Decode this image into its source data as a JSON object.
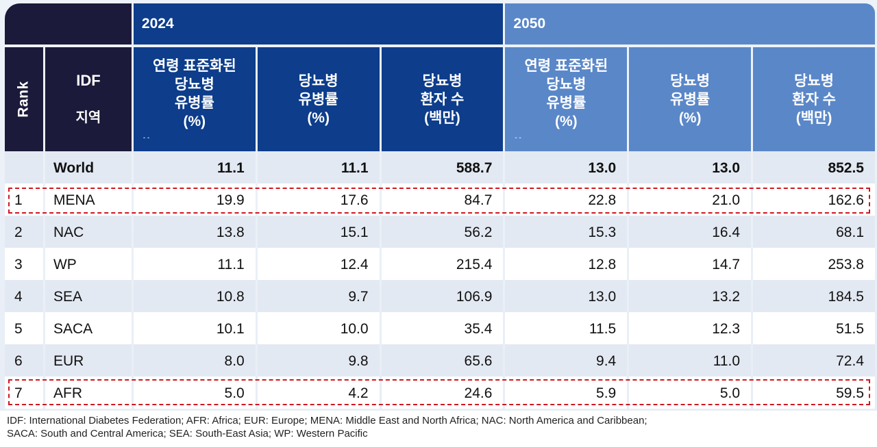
{
  "table": {
    "header": {
      "corner": "",
      "year_2024": "2024",
      "year_2050": "2050",
      "rank": "Rank",
      "region_line1": "IDF",
      "region_line2": "지역",
      "col_age_std": [
        "연령  표준화된",
        "당뇨병",
        "유병률",
        "(%)"
      ],
      "col_prev": [
        "당뇨병",
        "유병률",
        "(%)"
      ],
      "col_cases": [
        "당뇨병",
        "환자  수",
        "(백만)"
      ],
      "dots": "-   -"
    },
    "rows": [
      {
        "rank": "",
        "region": "World",
        "v2024": [
          "11.1",
          "11.1",
          "588.7"
        ],
        "v2050": [
          "13.0",
          "13.0",
          "852.5"
        ],
        "bold": true,
        "shade": true,
        "highlight": false
      },
      {
        "rank": "1",
        "region": "MENA",
        "v2024": [
          "19.9",
          "17.6",
          "84.7"
        ],
        "v2050": [
          "22.8",
          "21.0",
          "162.6"
        ],
        "bold": false,
        "shade": false,
        "highlight": true
      },
      {
        "rank": "2",
        "region": "NAC",
        "v2024": [
          "13.8",
          "15.1",
          "56.2"
        ],
        "v2050": [
          "15.3",
          "16.4",
          "68.1"
        ],
        "bold": false,
        "shade": true,
        "highlight": false
      },
      {
        "rank": "3",
        "region": "WP",
        "v2024": [
          "11.1",
          "12.4",
          "215.4"
        ],
        "v2050": [
          "12.8",
          "14.7",
          "253.8"
        ],
        "bold": false,
        "shade": false,
        "highlight": false
      },
      {
        "rank": "4",
        "region": "SEA",
        "v2024": [
          "10.8",
          "9.7",
          "106.9"
        ],
        "v2050": [
          "13.0",
          "13.2",
          "184.5"
        ],
        "bold": false,
        "shade": true,
        "highlight": false
      },
      {
        "rank": "5",
        "region": "SACA",
        "v2024": [
          "10.1",
          "10.0",
          "35.4"
        ],
        "v2050": [
          "11.5",
          "12.3",
          "51.5"
        ],
        "bold": false,
        "shade": false,
        "highlight": false
      },
      {
        "rank": "6",
        "region": "EUR",
        "v2024": [
          "8.0",
          "9.8",
          "65.6"
        ],
        "v2050": [
          "9.4",
          "11.0",
          "72.4"
        ],
        "bold": false,
        "shade": true,
        "highlight": false
      },
      {
        "rank": "7",
        "region": "AFR",
        "v2024": [
          "5.0",
          "4.2",
          "24.6"
        ],
        "v2050": [
          "5.9",
          "5.0",
          "59.5"
        ],
        "bold": false,
        "shade": false,
        "highlight": true
      }
    ]
  },
  "footnote": {
    "line1": "IDF: International Diabetes Federation; AFR: Africa; EUR: Europe; MENA: Middle East and North Africa; NAC: North America and Caribbean;",
    "line2": "SACA: South and Central America; SEA: South-East Asia; WP: Western Pacific"
  },
  "colors": {
    "dark_header": "#1c1a3a",
    "header_2024": "#0d3d8b",
    "header_2050": "#5a87c8",
    "row_shade": "#e3e9f2",
    "highlight_border": "#d0161e"
  }
}
